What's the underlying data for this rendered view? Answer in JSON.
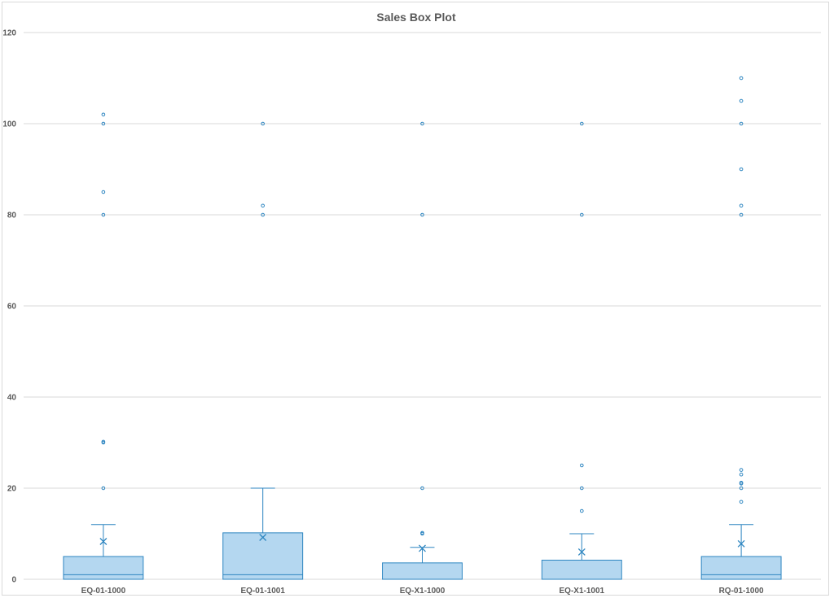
{
  "chart_data": {
    "type": "box",
    "title": "Sales Box Plot",
    "ylim": [
      0,
      120
    ],
    "yticks": [
      0,
      20,
      40,
      60,
      80,
      100,
      120
    ],
    "grid": true,
    "colors": {
      "fill": "#b4d7f0",
      "stroke": "#2e86c1",
      "grid": "#d9d9d9"
    },
    "categories": [
      "EQ-01-1000",
      "EQ-01-1001",
      "EQ-X1-1000",
      "EQ-X1-1001",
      "RQ-01-1000"
    ],
    "boxes": [
      {
        "category": "EQ-01-1000",
        "min": 0,
        "q1": 0,
        "median": 1,
        "q3": 5,
        "whisker_high": 12,
        "mean": 8.3,
        "outliers": [
          20,
          30,
          30.2,
          80,
          85,
          100,
          102
        ]
      },
      {
        "category": "EQ-01-1001",
        "min": 0,
        "q1": 0,
        "median": 1,
        "q3": 10.2,
        "whisker_high": 20,
        "mean": 9.2,
        "outliers": [
          80,
          82,
          100
        ]
      },
      {
        "category": "EQ-X1-1000",
        "min": 0,
        "q1": 0,
        "median": 0,
        "q3": 3.6,
        "whisker_high": 7,
        "mean": 6.8,
        "outliers": [
          10,
          10.2,
          20,
          80,
          100
        ]
      },
      {
        "category": "EQ-X1-1001",
        "min": 0,
        "q1": 0,
        "median": 0,
        "q3": 4.2,
        "whisker_high": 10,
        "mean": 6,
        "outliers": [
          15,
          20,
          25,
          80,
          100
        ]
      },
      {
        "category": "RQ-01-1000",
        "min": 0,
        "q1": 0,
        "median": 1,
        "q3": 5,
        "whisker_high": 12,
        "mean": 7.8,
        "outliers": [
          17,
          20,
          21,
          21.2,
          23,
          24,
          80,
          82,
          90,
          100,
          105,
          110
        ]
      }
    ]
  }
}
